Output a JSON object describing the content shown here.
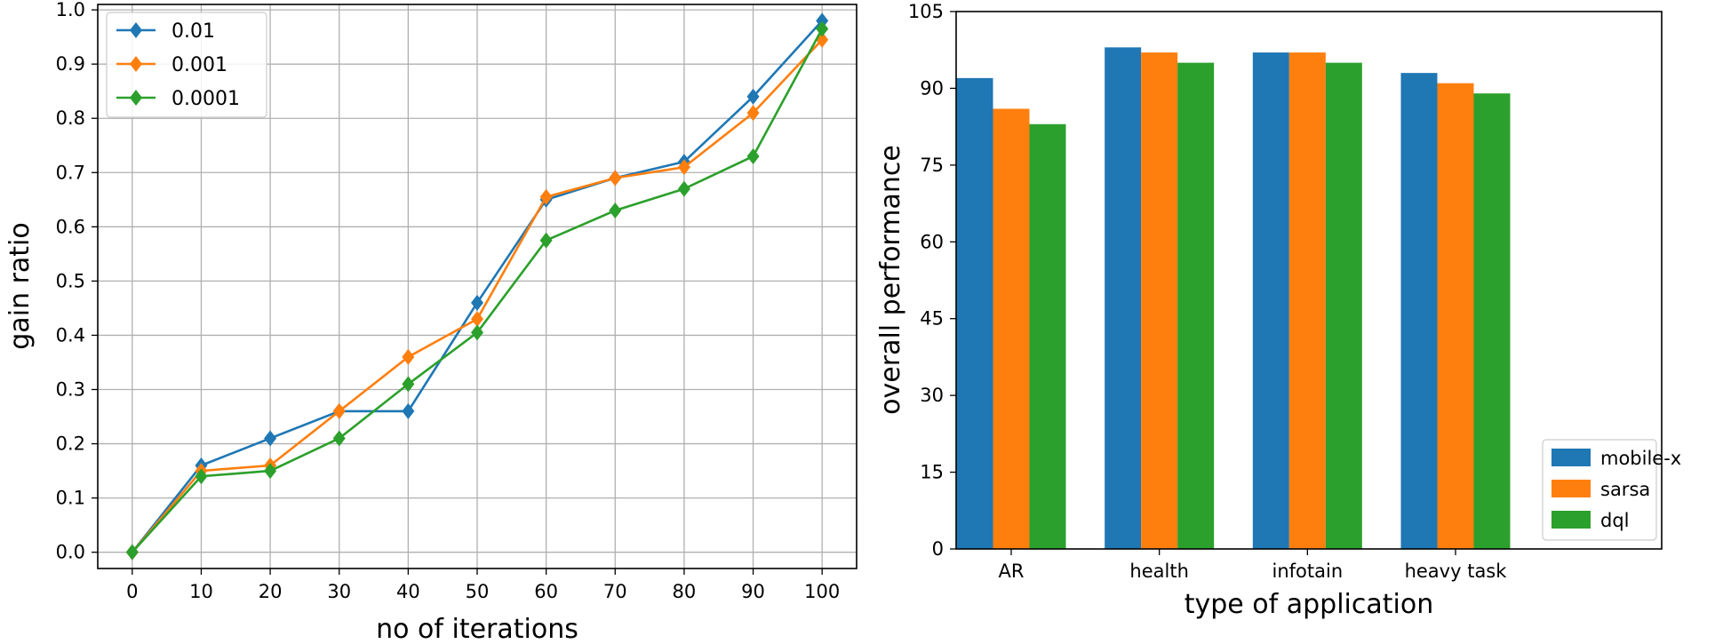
{
  "chart_data": [
    {
      "type": "line",
      "xlabel": "no of iterations",
      "ylabel": "gain ratio",
      "x": [
        0,
        10,
        20,
        30,
        40,
        50,
        60,
        70,
        80,
        90,
        100
      ],
      "xlim": [
        -5,
        105
      ],
      "ylim": [
        -0.03,
        1.01
      ],
      "xticks": [
        "0",
        "10",
        "20",
        "30",
        "40",
        "50",
        "60",
        "70",
        "80",
        "90",
        "100"
      ],
      "yticks": [
        "0.0",
        "0.1",
        "0.2",
        "0.3",
        "0.4",
        "0.5",
        "0.6",
        "0.7",
        "0.8",
        "0.9",
        "1.0"
      ],
      "grid": true,
      "legend_position": "top-left",
      "series": [
        {
          "name": "0.01",
          "color": "#1f77b4",
          "marker": "diamond",
          "values": [
            0.0,
            0.16,
            0.21,
            0.26,
            0.26,
            0.46,
            0.65,
            0.69,
            0.72,
            0.84,
            0.98
          ]
        },
        {
          "name": "0.001",
          "color": "#ff7f0e",
          "marker": "diamond",
          "values": [
            0.0,
            0.15,
            0.16,
            0.26,
            0.36,
            0.43,
            0.655,
            0.69,
            0.71,
            0.81,
            0.945
          ]
        },
        {
          "name": "0.0001",
          "color": "#2ca02c",
          "marker": "diamond",
          "values": [
            0.0,
            0.14,
            0.15,
            0.21,
            0.31,
            0.405,
            0.575,
            0.63,
            0.67,
            0.73,
            0.965
          ]
        }
      ]
    },
    {
      "type": "bar",
      "xlabel": "type of application",
      "ylabel": "overall performance",
      "categories": [
        "AR",
        "health",
        "infotain",
        "heavy task"
      ],
      "ylim": [
        0,
        105
      ],
      "yticks": [
        "0",
        "15",
        "30",
        "45",
        "60",
        "75",
        "90",
        "105"
      ],
      "grid": false,
      "legend_position": "bottom-right",
      "series": [
        {
          "name": "mobile-x",
          "color": "#1f77b4",
          "values": [
            92,
            98,
            97,
            93
          ]
        },
        {
          "name": "sarsa",
          "color": "#ff7f0e",
          "values": [
            86,
            97,
            97,
            91
          ]
        },
        {
          "name": "dql",
          "color": "#2ca02c",
          "values": [
            83,
            95,
            95,
            89
          ]
        }
      ]
    }
  ]
}
